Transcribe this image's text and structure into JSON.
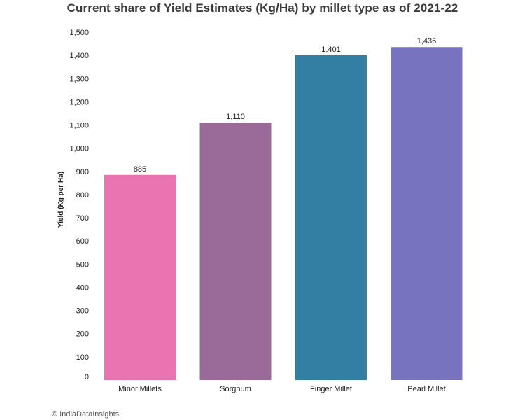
{
  "chart_data": {
    "type": "bar",
    "title": "Current share of Yield Estimates (Kg/Ha) by millet type as of 2021-22",
    "xlabel": "",
    "ylabel": "Yield (Kg per Ha)",
    "categories": [
      "Minor Millets",
      "Sorghum",
      "Finger Millet",
      "Pearl Millet"
    ],
    "values": [
      885,
      1110,
      1401,
      1436
    ],
    "data_labels": [
      "885",
      "1,110",
      "1,401",
      "1,436"
    ],
    "colors": [
      "#ea74b2",
      "#9a6b98",
      "#337fa3",
      "#7873bf"
    ],
    "ylim": [
      0,
      1500
    ],
    "yticks": [
      0,
      100,
      200,
      300,
      400,
      500,
      600,
      700,
      800,
      900,
      1000,
      1100,
      1200,
      1300,
      1400,
      1500
    ],
    "ytick_labels": [
      "0",
      "100",
      "200",
      "300",
      "400",
      "500",
      "600",
      "700",
      "800",
      "900",
      "1,000",
      "1,100",
      "1,200",
      "1,300",
      "1,400",
      "1,500"
    ],
    "grid": false,
    "legend": "none"
  },
  "credit": "© IndiaDataInsights"
}
